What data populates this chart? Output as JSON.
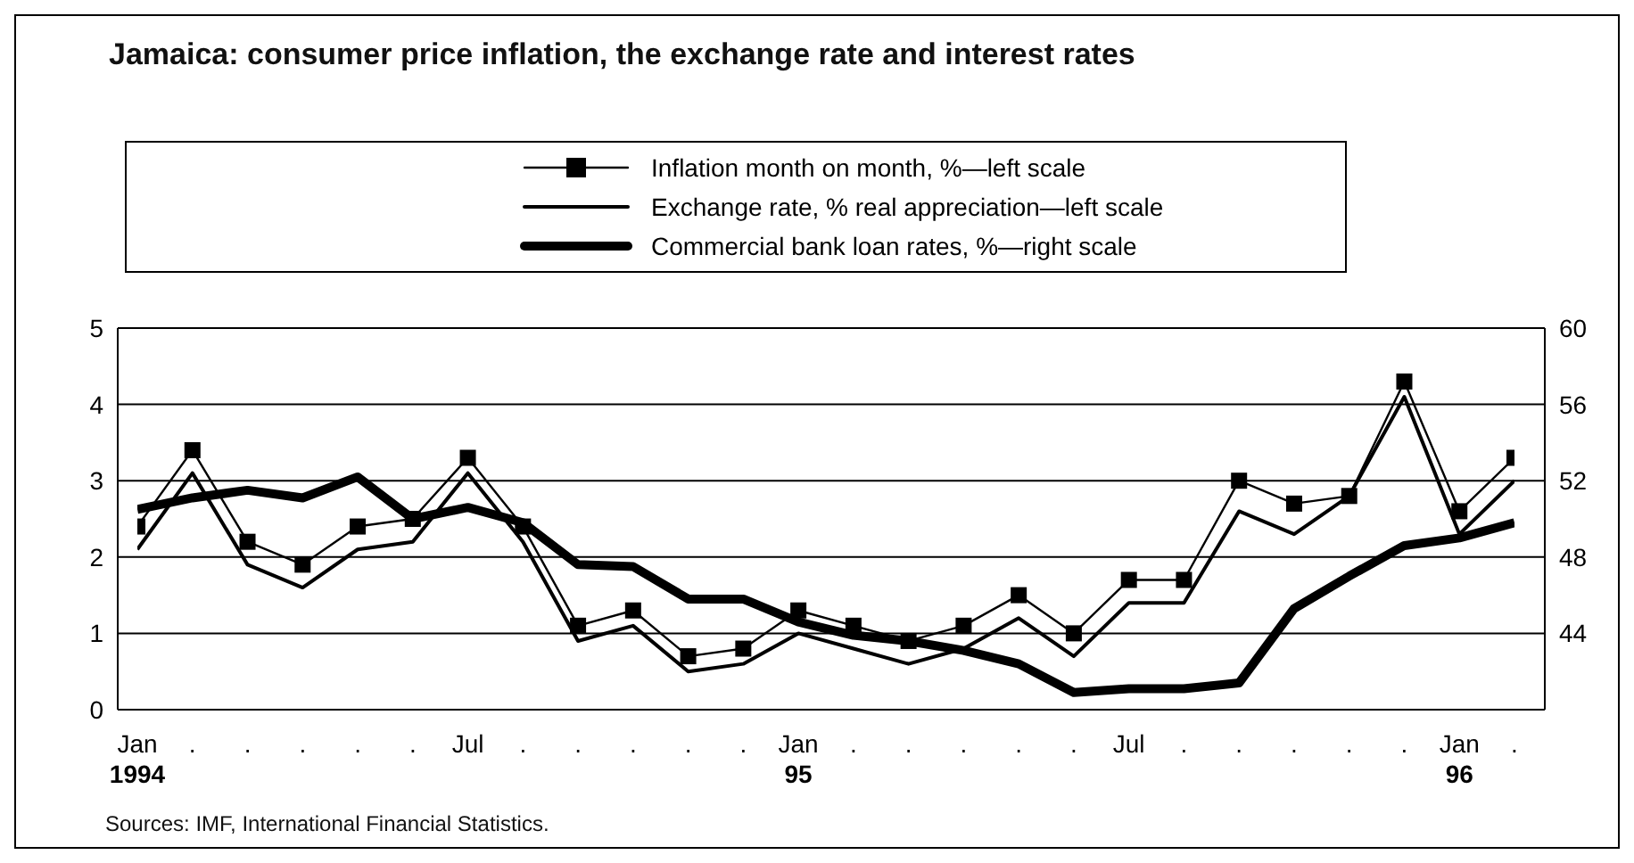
{
  "chart_data": {
    "type": "line",
    "title": "Jamaica: consumer price inflation, the exchange rate and interest rates",
    "annotations": [
      "Sources: IMF, International Financial Statistics."
    ],
    "categories": [
      "Jan\n1994",
      ".",
      ".",
      ".",
      ".",
      ".",
      "Jul",
      ".",
      ".",
      ".",
      ".",
      ".",
      "Jan\n95",
      ".",
      ".",
      ".",
      ".",
      ".",
      "Jul",
      ".",
      ".",
      ".",
      ".",
      ".",
      "Jan\n96",
      "."
    ],
    "series": [
      {
        "name": "Inflation month on month, %—left scale",
        "color": "#000000",
        "marker": "square",
        "values": [
          2.4,
          3.4,
          2.2,
          1.9,
          2.4,
          2.5,
          3.3,
          2.4,
          1.1,
          1.3,
          0.7,
          0.8,
          1.3,
          1.1,
          0.9,
          1.1,
          1.5,
          1.0,
          1.7,
          1.7,
          3.0,
          2.7,
          2.8,
          4.3,
          2.6,
          3.3
        ]
      },
      {
        "name": "Exchange rate, % real appreciation—left scale",
        "color": "#000000",
        "values": [
          2.1,
          3.1,
          1.9,
          1.6,
          2.1,
          2.2,
          3.1,
          2.2,
          0.9,
          1.1,
          0.5,
          0.6,
          1.0,
          0.8,
          0.6,
          0.8,
          1.2,
          0.7,
          1.4,
          1.4,
          2.6,
          2.3,
          2.8,
          4.1,
          2.3,
          3.0
        ]
      },
      {
        "name": "Commercial bank loan rates, %—right scale",
        "color": "#000000",
        "axis": "y2",
        "values": [
          50.5,
          51.1,
          51.5,
          51.1,
          52.2,
          50.0,
          50.6,
          49.8,
          47.6,
          47.5,
          45.8,
          45.8,
          44.6,
          43.9,
          43.6,
          43.1,
          42.4,
          40.9,
          41.1,
          41.1,
          41.4,
          45.3,
          47.0,
          48.6,
          49.0,
          49.8
        ]
      }
    ],
    "ylim": [
      0,
      5
    ],
    "yticks": [
      0,
      1,
      2,
      3,
      4,
      5
    ],
    "y2lim": [
      40,
      60
    ],
    "y2ticks": [
      44,
      48,
      52,
      56,
      60
    ],
    "grid": "y",
    "legend": "top",
    "marker": "none",
    "line_style": "solid"
  }
}
